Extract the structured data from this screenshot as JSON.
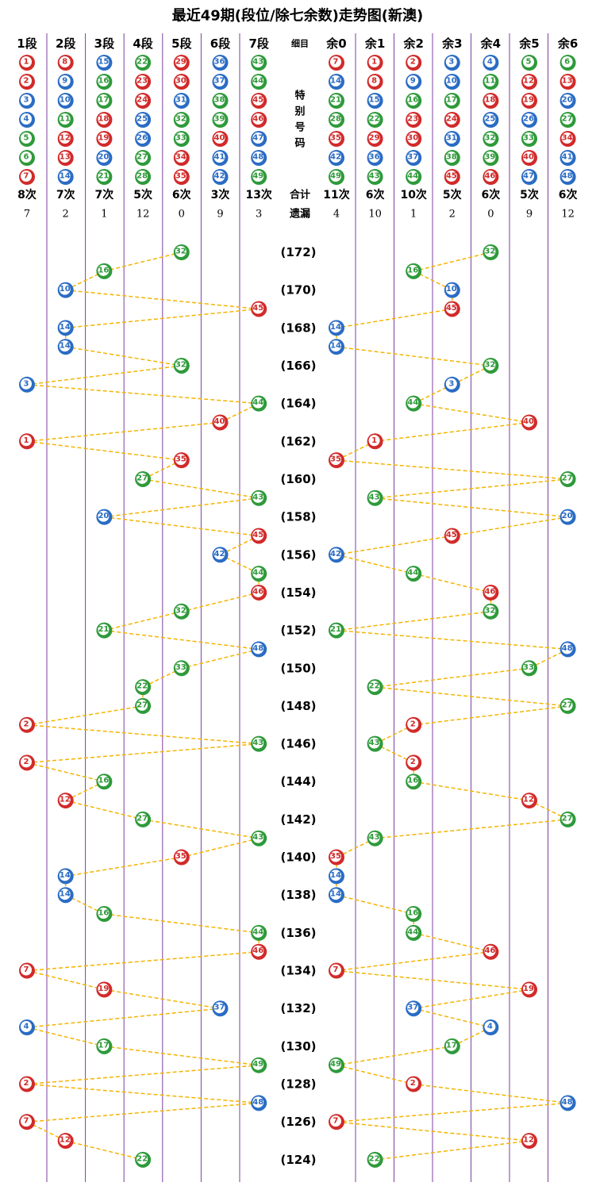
{
  "title": "最近49期(段位/除七余数)走势图(新澳)",
  "detail_header": "细目",
  "special_label": [
    "特",
    "别",
    "号",
    "码"
  ],
  "total_label": "合计",
  "miss_label": "遗漏",
  "segments": [
    {
      "name": "1段",
      "numbers": [
        1,
        2,
        3,
        4,
        5,
        6,
        7
      ],
      "count": "8次",
      "miss": 7
    },
    {
      "name": "2段",
      "numbers": [
        8,
        9,
        10,
        11,
        12,
        13,
        14
      ],
      "count": "7次",
      "miss": 2
    },
    {
      "name": "3段",
      "numbers": [
        15,
        16,
        17,
        18,
        19,
        20,
        21
      ],
      "count": "7次",
      "miss": 1
    },
    {
      "name": "4段",
      "numbers": [
        22,
        23,
        24,
        25,
        26,
        27,
        28
      ],
      "count": "5次",
      "miss": 12
    },
    {
      "name": "5段",
      "numbers": [
        29,
        30,
        31,
        32,
        33,
        34,
        35
      ],
      "count": "6次",
      "miss": 0
    },
    {
      "name": "6段",
      "numbers": [
        36,
        37,
        38,
        39,
        40,
        41,
        42
      ],
      "count": "3次",
      "miss": 9
    },
    {
      "name": "7段",
      "numbers": [
        43,
        44,
        45,
        46,
        47,
        48,
        49
      ],
      "count": "13次",
      "miss": 3
    }
  ],
  "residues": [
    {
      "name": "余0",
      "numbers": [
        7,
        14,
        21,
        28,
        35,
        42,
        49
      ],
      "count": "11次",
      "miss": 4
    },
    {
      "name": "余1",
      "numbers": [
        1,
        8,
        15,
        22,
        29,
        36,
        43
      ],
      "count": "6次",
      "miss": 10
    },
    {
      "name": "余2",
      "numbers": [
        2,
        9,
        16,
        23,
        30,
        37,
        44
      ],
      "count": "10次",
      "miss": 1
    },
    {
      "name": "余3",
      "numbers": [
        3,
        10,
        17,
        24,
        31,
        38,
        45
      ],
      "count": "5次",
      "miss": 2
    },
    {
      "name": "余4",
      "numbers": [
        4,
        11,
        18,
        25,
        32,
        39,
        46
      ],
      "count": "6次",
      "miss": 0
    },
    {
      "name": "余5",
      "numbers": [
        5,
        12,
        19,
        26,
        33,
        40,
        47
      ],
      "count": "5次",
      "miss": 9
    },
    {
      "name": "余6",
      "numbers": [
        6,
        13,
        20,
        27,
        34,
        41,
        48
      ],
      "count": "6次",
      "miss": 12
    }
  ],
  "draws": [
    {
      "period": "(172)",
      "number": 32
    },
    {
      "period": null,
      "number": 16
    },
    {
      "period": "(170)",
      "number": 10
    },
    {
      "period": null,
      "number": 45
    },
    {
      "period": "(168)",
      "number": 14
    },
    {
      "period": null,
      "number": 14
    },
    {
      "period": "(166)",
      "number": 32
    },
    {
      "period": null,
      "number": 3
    },
    {
      "period": "(164)",
      "number": 44
    },
    {
      "period": null,
      "number": 40
    },
    {
      "period": "(162)",
      "number": 1
    },
    {
      "period": null,
      "number": 35
    },
    {
      "period": "(160)",
      "number": 27
    },
    {
      "period": null,
      "number": 43
    },
    {
      "period": "(158)",
      "number": 20
    },
    {
      "period": null,
      "number": 45
    },
    {
      "period": "(156)",
      "number": 42
    },
    {
      "period": null,
      "number": 44
    },
    {
      "period": "(154)",
      "number": 46
    },
    {
      "period": null,
      "number": 32
    },
    {
      "period": "(152)",
      "number": 21
    },
    {
      "period": null,
      "number": 48
    },
    {
      "period": "(150)",
      "number": 33
    },
    {
      "period": null,
      "number": 22
    },
    {
      "period": "(148)",
      "number": 27
    },
    {
      "period": null,
      "number": 2
    },
    {
      "period": "(146)",
      "number": 43
    },
    {
      "period": null,
      "number": 2
    },
    {
      "period": "(144)",
      "number": 16
    },
    {
      "period": null,
      "number": 12
    },
    {
      "period": "(142)",
      "number": 27
    },
    {
      "period": null,
      "number": 43
    },
    {
      "period": "(140)",
      "number": 35
    },
    {
      "period": null,
      "number": 14
    },
    {
      "period": "(138)",
      "number": 14
    },
    {
      "period": null,
      "number": 16
    },
    {
      "period": "(136)",
      "number": 44
    },
    {
      "period": null,
      "number": 46
    },
    {
      "period": "(134)",
      "number": 7
    },
    {
      "period": null,
      "number": 19
    },
    {
      "period": "(132)",
      "number": 37
    },
    {
      "period": null,
      "number": 4
    },
    {
      "period": "(130)",
      "number": 17
    },
    {
      "period": null,
      "number": 49
    },
    {
      "period": "(128)",
      "number": 2
    },
    {
      "period": null,
      "number": 48
    },
    {
      "period": "(126)",
      "number": 7
    },
    {
      "period": null,
      "number": 12
    },
    {
      "period": "(124)",
      "number": 22
    }
  ],
  "ball_colors": [
    {
      "color": "#d22a2a",
      "numbers": [
        1,
        2,
        7,
        8,
        12,
        13,
        18,
        19,
        23,
        24,
        29,
        30,
        34,
        35,
        40,
        45,
        46
      ]
    },
    {
      "color": "#2a6cc4",
      "numbers": [
        3,
        4,
        9,
        10,
        14,
        15,
        20,
        25,
        26,
        31,
        36,
        37,
        41,
        42,
        47,
        48
      ]
    },
    {
      "color": "#2e9a3a",
      "numbers": [
        5,
        6,
        11,
        16,
        17,
        21,
        22,
        27,
        28,
        32,
        33,
        38,
        39,
        43,
        44,
        49
      ]
    }
  ],
  "line_color": "#f5b400"
}
